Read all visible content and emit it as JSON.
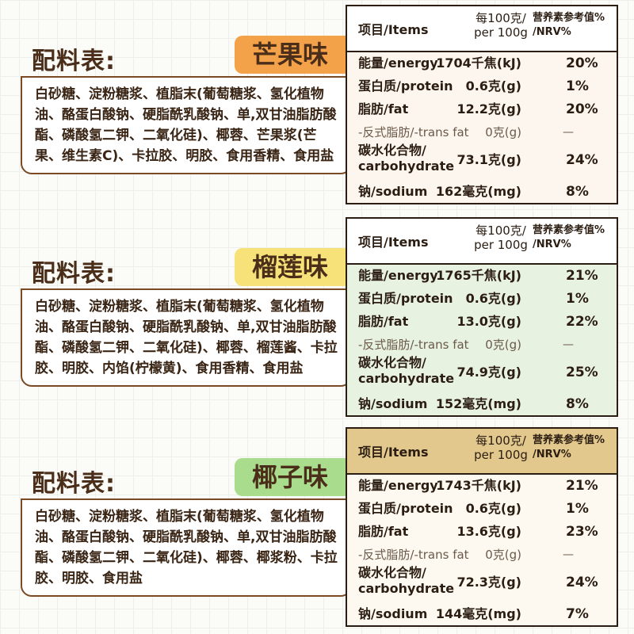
{
  "sections": [
    {
      "title": "配料表:",
      "flavor": "芒果味",
      "flavor_color": "#f4a24a",
      "table_bg": "#fdf6ee",
      "head_bg": "#ffffff",
      "ingredients": "白砂糖、淀粉糖浆、植脂末(葡萄糖浆、氢化植物油、酪蛋白酸钠、硬脂酰乳酸钠、单,双甘油脂肪酸酯、磷酸氢二钾、二氧化硅)、椰蓉、芒果浆(芒果、维生素C)、卡拉胶、明胶、食用香精、食用盐",
      "table": {
        "col_items": "项目/Items",
        "col_per_1": "每100克/",
        "col_per_2": "per 100g",
        "col_nrv_1": "营养素参考值%",
        "col_nrv_2": "/NRV%",
        "rows": [
          {
            "name": "能量/energy",
            "value": "1704千焦(kJ)",
            "nrv": "20%"
          },
          {
            "name": "蛋白质/protein",
            "value": "0.6克(g)",
            "nrv": "1%"
          },
          {
            "name": "脂肪/fat",
            "value": "12.2克(g)",
            "nrv": "20%"
          },
          {
            "name": "-反式脂肪/-trans fat",
            "value": "0克(g)",
            "nrv": "—"
          },
          {
            "name": "碳水化合物/",
            "name2": "carbohydrate",
            "value": "73.1克(g)",
            "nrv": "24%"
          },
          {
            "name": "钠/sodium",
            "value": "162毫克(mg)",
            "nrv": "8%"
          }
        ]
      }
    },
    {
      "title": "配料表:",
      "flavor": "榴莲味",
      "flavor_color": "#f7e27a",
      "table_bg": "#e8f2e0",
      "head_bg": "#ffffff",
      "ingredients": "白砂糖、淀粉糖浆、植脂末(葡萄糖浆、氢化植物油、酪蛋白酸钠、硬脂酰乳酸钠、单,双甘油脂肪酸酯、磷酸氢二钾、二氧化硅)、椰蓉、榴莲酱、卡拉胶、明胶、内馅(柠檬黄)、食用香精、食用盐",
      "table": {
        "col_items": "项目/Items",
        "col_per_1": "每100克/",
        "col_per_2": "per 100g",
        "col_nrv_1": "营养素参考值%",
        "col_nrv_2": "/NRV%",
        "rows": [
          {
            "name": "能量/energy",
            "value": "1765千焦(kJ)",
            "nrv": "21%"
          },
          {
            "name": "蛋白质/protein",
            "value": "0.6克(g)",
            "nrv": "1%"
          },
          {
            "name": "脂肪/fat",
            "value": "13.0克(g)",
            "nrv": "22%"
          },
          {
            "name": "-反式脂肪/-trans fat",
            "value": "0克(g)",
            "nrv": "—"
          },
          {
            "name": "碳水化合物/",
            "name2": "carbohydrate",
            "value": "74.9克(g)",
            "nrv": "25%"
          },
          {
            "name": "钠/sodium",
            "value": "152毫克(mg)",
            "nrv": "8%"
          }
        ]
      }
    },
    {
      "title": "配料表:",
      "flavor": "椰子味",
      "flavor_color": "#a9dc8c",
      "table_bg": "#fdf9f0",
      "head_bg": "#e2c88c",
      "ingredients": "白砂糖、淀粉糖浆、植脂末(葡萄糖浆、氢化植物油、酪蛋白酸钠、硬脂酰乳酸钠、单,双甘油脂肪酸酯、磷酸氢二钾、二氧化硅)、椰蓉、椰浆粉、卡拉胶、明胶、食用盐",
      "table": {
        "col_items": "项目/Items",
        "col_per_1": "每100克/",
        "col_per_2": "per 100g",
        "col_nrv_1": "营养素参考值%",
        "col_nrv_2": "/NRV%",
        "rows": [
          {
            "name": "能量/energy",
            "value": "1743千焦(kJ)",
            "nrv": "21%"
          },
          {
            "name": "蛋白质/protein",
            "value": "0.6克(g)",
            "nrv": "1%"
          },
          {
            "name": "脂肪/fat",
            "value": "13.6克(g)",
            "nrv": "23%"
          },
          {
            "name": "-反式脂肪/-trans fat",
            "value": "0克(g)",
            "nrv": "—"
          },
          {
            "name": "碳水化合物/",
            "name2": "carbohydrate",
            "value": "72.3克(g)",
            "nrv": "24%"
          },
          {
            "name": "钠/sodium",
            "value": "144毫克(mg)",
            "nrv": "7%"
          }
        ]
      }
    }
  ]
}
